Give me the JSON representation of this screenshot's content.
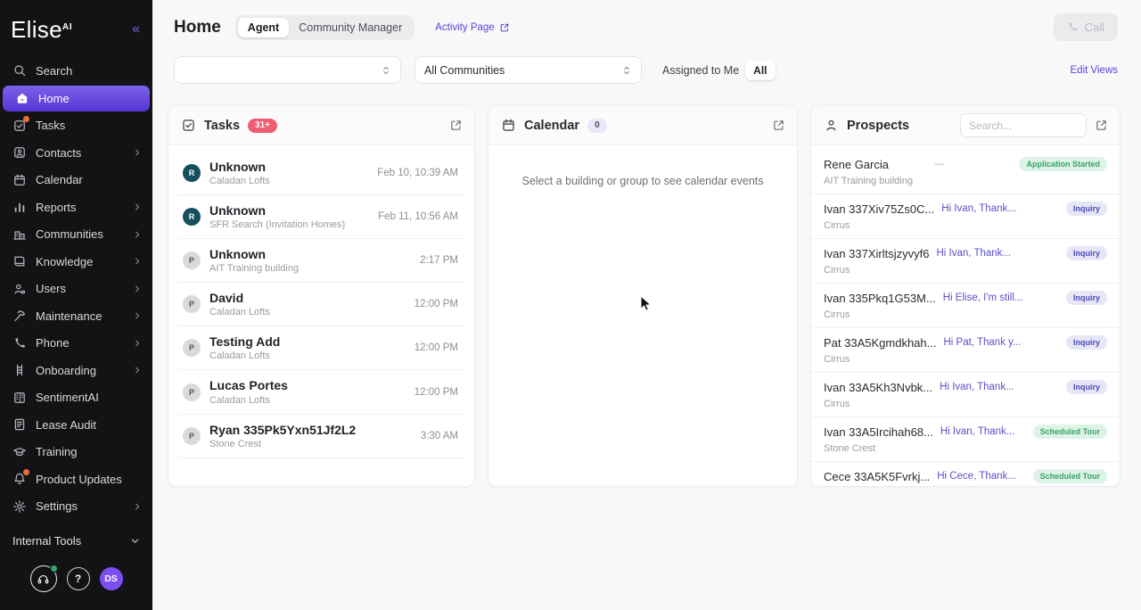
{
  "sidebar": {
    "logo_brand": "Elise",
    "logo_suffix": "AI",
    "items": [
      {
        "label": "Search",
        "icon": "search-icon"
      },
      {
        "label": "Home",
        "icon": "home-icon",
        "active": true
      },
      {
        "label": "Tasks",
        "icon": "tasks-icon",
        "dot": true
      },
      {
        "label": "Contacts",
        "icon": "contacts-icon",
        "chevron": true
      },
      {
        "label": "Calendar",
        "icon": "calendar-icon"
      },
      {
        "label": "Reports",
        "icon": "reports-icon",
        "chevron": true
      },
      {
        "label": "Communities",
        "icon": "communities-icon",
        "chevron": true
      },
      {
        "label": "Knowledge",
        "icon": "knowledge-icon",
        "chevron": true
      },
      {
        "label": "Users",
        "icon": "users-icon",
        "chevron": true
      },
      {
        "label": "Maintenance",
        "icon": "maintenance-icon",
        "chevron": true
      },
      {
        "label": "Phone",
        "icon": "phone-icon",
        "chevron": true
      },
      {
        "label": "Onboarding",
        "icon": "onboarding-icon",
        "chevron": true
      },
      {
        "label": "SentimentAI",
        "icon": "sentiment-icon"
      },
      {
        "label": "Lease Audit",
        "icon": "lease-audit-icon"
      },
      {
        "label": "Training",
        "icon": "training-icon"
      },
      {
        "label": "Product Updates",
        "icon": "bell-icon",
        "dot": true
      },
      {
        "label": "Settings",
        "icon": "settings-icon",
        "chevron": true
      }
    ],
    "internal_tools_label": "Internal Tools",
    "avatar_initials": "DS"
  },
  "header": {
    "title": "Home",
    "tabs": [
      {
        "label": "Agent",
        "active": true
      },
      {
        "label": "Community Manager",
        "active": false
      }
    ],
    "activity_link_label": "Activity Page",
    "call_label": "Call"
  },
  "filters": {
    "view_value": "",
    "communities_value": "All Communities",
    "assigned_label": "Assigned to Me",
    "assigned_all_label": "All",
    "edit_views_label": "Edit Views"
  },
  "tasks": {
    "title": "Tasks",
    "badge": "31+",
    "items": [
      {
        "initial": "R",
        "type": "resident",
        "name": "Unknown",
        "building": "Caladan Lofts",
        "time": "Feb 10, 10:39 AM"
      },
      {
        "initial": "R",
        "type": "resident",
        "name": "Unknown",
        "building": "SFR Search (Invitation Homes)",
        "time": "Feb 11, 10:56 AM"
      },
      {
        "initial": "P",
        "type": "prospect",
        "name": "Unknown",
        "building": "AIT Training building",
        "time": "2:17 PM"
      },
      {
        "initial": "P",
        "type": "prospect",
        "name": "David",
        "building": "Caladan Lofts",
        "time": "12:00 PM"
      },
      {
        "initial": "P",
        "type": "prospect",
        "name": "Testing Add",
        "building": "Caladan Lofts",
        "time": "12:00 PM"
      },
      {
        "initial": "P",
        "type": "prospect",
        "name": "Lucas Portes",
        "building": "Caladan Lofts",
        "time": "12:00 PM"
      },
      {
        "initial": "P",
        "type": "prospect",
        "name": "Ryan 335Pk5Yxn51Jf2L2",
        "building": "Stone Crest",
        "time": "3:30 AM"
      }
    ]
  },
  "calendar": {
    "title": "Calendar",
    "badge": "0",
    "empty_message": "Select a building or group to see calendar events"
  },
  "prospects": {
    "title": "Prospects",
    "search_placeholder": "Search...",
    "items": [
      {
        "name": "Rene Garcia",
        "preview": "—",
        "status": "Application Started",
        "status_type": "green",
        "building": "AIT Training building"
      },
      {
        "name": "Ivan 337Xiv75Zs0C...",
        "preview": "Hi Ivan, Thank...",
        "status": "Inquiry",
        "status_type": "purple",
        "building": "Cirrus"
      },
      {
        "name": "Ivan 337Xirltsjzyvyf6",
        "preview": "Hi Ivan, Thank...",
        "status": "Inquiry",
        "status_type": "purple",
        "building": "Cirrus"
      },
      {
        "name": "Ivan 335Pkq1G53M...",
        "preview": "Hi Elise, I'm still...",
        "status": "Inquiry",
        "status_type": "purple",
        "building": "Cirrus"
      },
      {
        "name": "Pat 33A5Kgmdkhah...",
        "preview": "Hi Pat, Thank y...",
        "status": "Inquiry",
        "status_type": "purple",
        "building": "Cirrus"
      },
      {
        "name": "Ivan 33A5Kh3Nvbk...",
        "preview": "Hi Ivan, Thank...",
        "status": "Inquiry",
        "status_type": "purple",
        "building": "Cirrus"
      },
      {
        "name": "Ivan 33A5Ircihah68...",
        "preview": "Hi Ivan, Thank...",
        "status": "Scheduled Tour",
        "status_type": "green",
        "building": "Stone Crest"
      },
      {
        "name": "Cece 33A5K5Fvrkj...",
        "preview": "Hi Cece, Thank...",
        "status": "Scheduled Tour",
        "status_type": "green",
        "building": ""
      }
    ]
  },
  "colors": {
    "accent_purple": "#6a4ef0",
    "sidebar_active_top": "#7d62ea",
    "sidebar_active_bottom": "#5634d2",
    "tasks_badge_red": "#ee5d72",
    "badge_green_bg": "#dcf3e5",
    "badge_green_text": "#3ba26b",
    "badge_purple_bg": "#e6e6f7",
    "badge_purple_text": "#4c4cba",
    "avatar_resident_bg": "#174f5e",
    "notification_orange": "#ee6a3c",
    "online_green": "#2fa866",
    "link_purple": "#5b44d8"
  }
}
